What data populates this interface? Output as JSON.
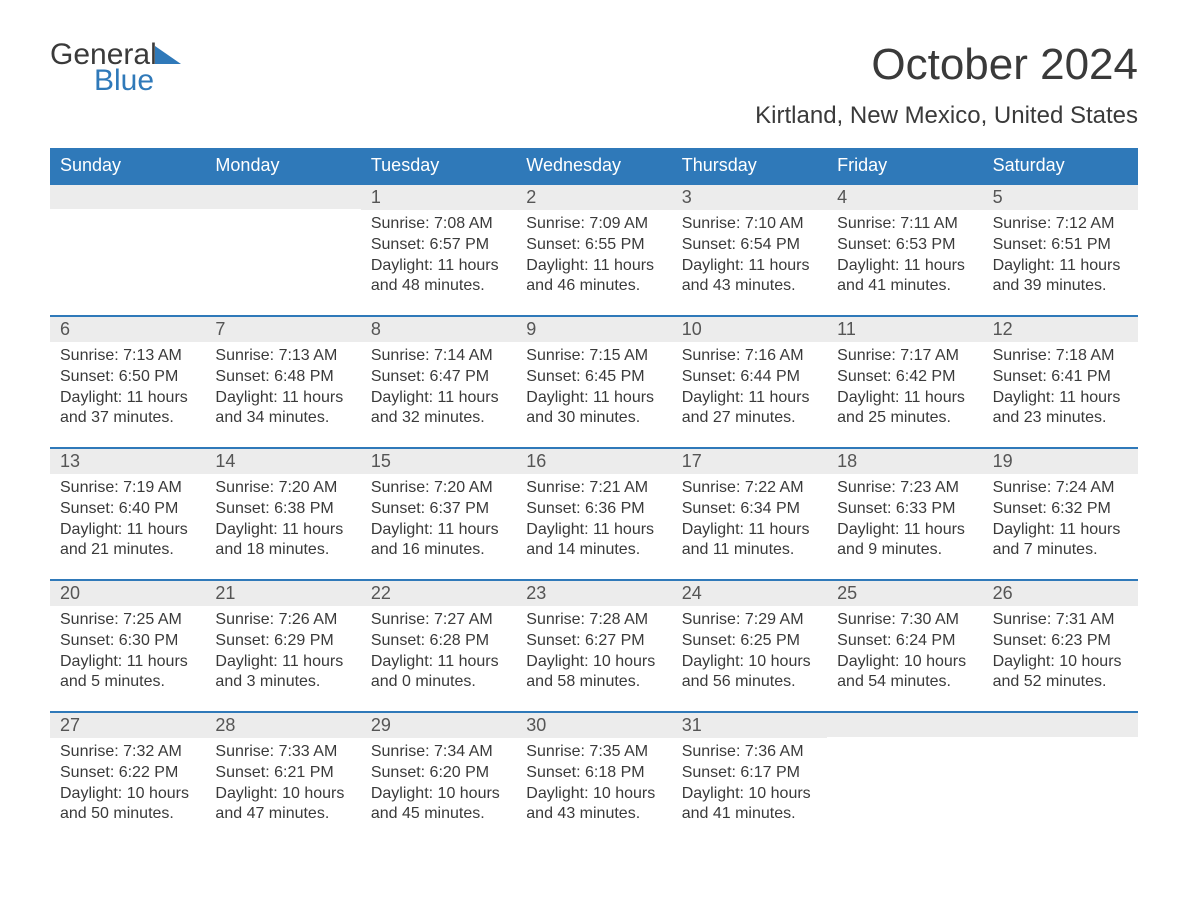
{
  "brand": {
    "part1": "General",
    "part2": "Blue"
  },
  "title": "October 2024",
  "subtitle": "Kirtland, New Mexico, United States",
  "colors": {
    "header_bg": "#2f79b9",
    "header_text": "#ffffff",
    "daynum_bg": "#ececec",
    "text": "#3a3a3a",
    "row_border": "#2f79b9",
    "background": "#ffffff"
  },
  "fontsizes": {
    "title": 44,
    "subtitle": 24,
    "weekday": 18,
    "daynum": 18,
    "body": 16
  },
  "weekdays": [
    "Sunday",
    "Monday",
    "Tuesday",
    "Wednesday",
    "Thursday",
    "Friday",
    "Saturday"
  ],
  "weeks": [
    [
      {
        "day": "",
        "sunrise": "",
        "sunset": "",
        "daylight1": "",
        "daylight2": ""
      },
      {
        "day": "",
        "sunrise": "",
        "sunset": "",
        "daylight1": "",
        "daylight2": ""
      },
      {
        "day": "1",
        "sunrise": "Sunrise: 7:08 AM",
        "sunset": "Sunset: 6:57 PM",
        "daylight1": "Daylight: 11 hours",
        "daylight2": "and 48 minutes."
      },
      {
        "day": "2",
        "sunrise": "Sunrise: 7:09 AM",
        "sunset": "Sunset: 6:55 PM",
        "daylight1": "Daylight: 11 hours",
        "daylight2": "and 46 minutes."
      },
      {
        "day": "3",
        "sunrise": "Sunrise: 7:10 AM",
        "sunset": "Sunset: 6:54 PM",
        "daylight1": "Daylight: 11 hours",
        "daylight2": "and 43 minutes."
      },
      {
        "day": "4",
        "sunrise": "Sunrise: 7:11 AM",
        "sunset": "Sunset: 6:53 PM",
        "daylight1": "Daylight: 11 hours",
        "daylight2": "and 41 minutes."
      },
      {
        "day": "5",
        "sunrise": "Sunrise: 7:12 AM",
        "sunset": "Sunset: 6:51 PM",
        "daylight1": "Daylight: 11 hours",
        "daylight2": "and 39 minutes."
      }
    ],
    [
      {
        "day": "6",
        "sunrise": "Sunrise: 7:13 AM",
        "sunset": "Sunset: 6:50 PM",
        "daylight1": "Daylight: 11 hours",
        "daylight2": "and 37 minutes."
      },
      {
        "day": "7",
        "sunrise": "Sunrise: 7:13 AM",
        "sunset": "Sunset: 6:48 PM",
        "daylight1": "Daylight: 11 hours",
        "daylight2": "and 34 minutes."
      },
      {
        "day": "8",
        "sunrise": "Sunrise: 7:14 AM",
        "sunset": "Sunset: 6:47 PM",
        "daylight1": "Daylight: 11 hours",
        "daylight2": "and 32 minutes."
      },
      {
        "day": "9",
        "sunrise": "Sunrise: 7:15 AM",
        "sunset": "Sunset: 6:45 PM",
        "daylight1": "Daylight: 11 hours",
        "daylight2": "and 30 minutes."
      },
      {
        "day": "10",
        "sunrise": "Sunrise: 7:16 AM",
        "sunset": "Sunset: 6:44 PM",
        "daylight1": "Daylight: 11 hours",
        "daylight2": "and 27 minutes."
      },
      {
        "day": "11",
        "sunrise": "Sunrise: 7:17 AM",
        "sunset": "Sunset: 6:42 PM",
        "daylight1": "Daylight: 11 hours",
        "daylight2": "and 25 minutes."
      },
      {
        "day": "12",
        "sunrise": "Sunrise: 7:18 AM",
        "sunset": "Sunset: 6:41 PM",
        "daylight1": "Daylight: 11 hours",
        "daylight2": "and 23 minutes."
      }
    ],
    [
      {
        "day": "13",
        "sunrise": "Sunrise: 7:19 AM",
        "sunset": "Sunset: 6:40 PM",
        "daylight1": "Daylight: 11 hours",
        "daylight2": "and 21 minutes."
      },
      {
        "day": "14",
        "sunrise": "Sunrise: 7:20 AM",
        "sunset": "Sunset: 6:38 PM",
        "daylight1": "Daylight: 11 hours",
        "daylight2": "and 18 minutes."
      },
      {
        "day": "15",
        "sunrise": "Sunrise: 7:20 AM",
        "sunset": "Sunset: 6:37 PM",
        "daylight1": "Daylight: 11 hours",
        "daylight2": "and 16 minutes."
      },
      {
        "day": "16",
        "sunrise": "Sunrise: 7:21 AM",
        "sunset": "Sunset: 6:36 PM",
        "daylight1": "Daylight: 11 hours",
        "daylight2": "and 14 minutes."
      },
      {
        "day": "17",
        "sunrise": "Sunrise: 7:22 AM",
        "sunset": "Sunset: 6:34 PM",
        "daylight1": "Daylight: 11 hours",
        "daylight2": "and 11 minutes."
      },
      {
        "day": "18",
        "sunrise": "Sunrise: 7:23 AM",
        "sunset": "Sunset: 6:33 PM",
        "daylight1": "Daylight: 11 hours",
        "daylight2": "and 9 minutes."
      },
      {
        "day": "19",
        "sunrise": "Sunrise: 7:24 AM",
        "sunset": "Sunset: 6:32 PM",
        "daylight1": "Daylight: 11 hours",
        "daylight2": "and 7 minutes."
      }
    ],
    [
      {
        "day": "20",
        "sunrise": "Sunrise: 7:25 AM",
        "sunset": "Sunset: 6:30 PM",
        "daylight1": "Daylight: 11 hours",
        "daylight2": "and 5 minutes."
      },
      {
        "day": "21",
        "sunrise": "Sunrise: 7:26 AM",
        "sunset": "Sunset: 6:29 PM",
        "daylight1": "Daylight: 11 hours",
        "daylight2": "and 3 minutes."
      },
      {
        "day": "22",
        "sunrise": "Sunrise: 7:27 AM",
        "sunset": "Sunset: 6:28 PM",
        "daylight1": "Daylight: 11 hours",
        "daylight2": "and 0 minutes."
      },
      {
        "day": "23",
        "sunrise": "Sunrise: 7:28 AM",
        "sunset": "Sunset: 6:27 PM",
        "daylight1": "Daylight: 10 hours",
        "daylight2": "and 58 minutes."
      },
      {
        "day": "24",
        "sunrise": "Sunrise: 7:29 AM",
        "sunset": "Sunset: 6:25 PM",
        "daylight1": "Daylight: 10 hours",
        "daylight2": "and 56 minutes."
      },
      {
        "day": "25",
        "sunrise": "Sunrise: 7:30 AM",
        "sunset": "Sunset: 6:24 PM",
        "daylight1": "Daylight: 10 hours",
        "daylight2": "and 54 minutes."
      },
      {
        "day": "26",
        "sunrise": "Sunrise: 7:31 AM",
        "sunset": "Sunset: 6:23 PM",
        "daylight1": "Daylight: 10 hours",
        "daylight2": "and 52 minutes."
      }
    ],
    [
      {
        "day": "27",
        "sunrise": "Sunrise: 7:32 AM",
        "sunset": "Sunset: 6:22 PM",
        "daylight1": "Daylight: 10 hours",
        "daylight2": "and 50 minutes."
      },
      {
        "day": "28",
        "sunrise": "Sunrise: 7:33 AM",
        "sunset": "Sunset: 6:21 PM",
        "daylight1": "Daylight: 10 hours",
        "daylight2": "and 47 minutes."
      },
      {
        "day": "29",
        "sunrise": "Sunrise: 7:34 AM",
        "sunset": "Sunset: 6:20 PM",
        "daylight1": "Daylight: 10 hours",
        "daylight2": "and 45 minutes."
      },
      {
        "day": "30",
        "sunrise": "Sunrise: 7:35 AM",
        "sunset": "Sunset: 6:18 PM",
        "daylight1": "Daylight: 10 hours",
        "daylight2": "and 43 minutes."
      },
      {
        "day": "31",
        "sunrise": "Sunrise: 7:36 AM",
        "sunset": "Sunset: 6:17 PM",
        "daylight1": "Daylight: 10 hours",
        "daylight2": "and 41 minutes."
      },
      {
        "day": "",
        "sunrise": "",
        "sunset": "",
        "daylight1": "",
        "daylight2": ""
      },
      {
        "day": "",
        "sunrise": "",
        "sunset": "",
        "daylight1": "",
        "daylight2": ""
      }
    ]
  ]
}
